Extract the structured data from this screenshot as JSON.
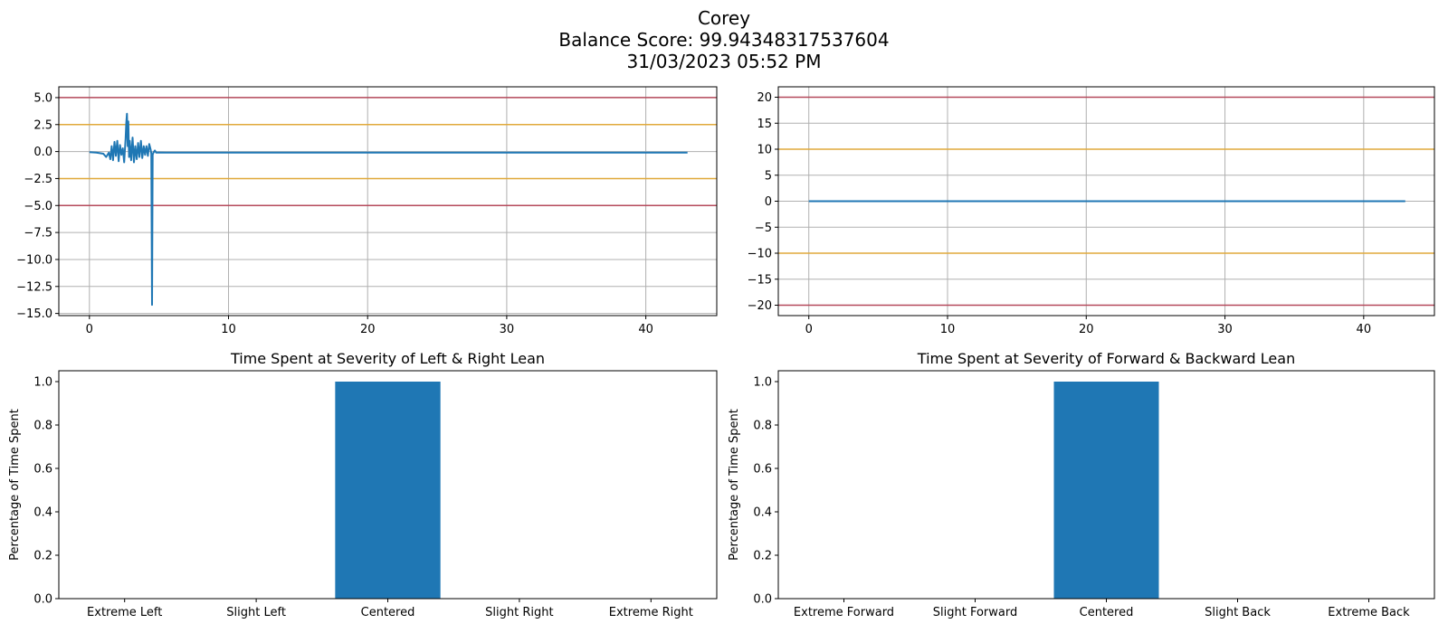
{
  "figure": {
    "name": "Corey",
    "score_text": "Balance Score: 99.94348317537604",
    "datetime": "31/03/2023 05:52 PM"
  },
  "colors": {
    "line": "#1f77b4",
    "bar": "#1f77b4",
    "extreme_threshold": "#b5495b",
    "slight_threshold": "#e0a93a",
    "grid": "#b0b0b0"
  },
  "chart_data": [
    {
      "id": "left-right-timeseries",
      "type": "line",
      "title": "",
      "xlabel": "",
      "ylabel": "",
      "xlim": [
        -2.2,
        45.1
      ],
      "ylim": [
        -15.2,
        6.0
      ],
      "xticks": [
        0,
        10,
        20,
        30,
        40
      ],
      "yticks": [
        5.0,
        2.5,
        0.0,
        -2.5,
        -5.0,
        -7.5,
        -10.0,
        -12.5,
        -15.0
      ],
      "ytick_labels": [
        "5.0",
        "2.5",
        "0.0",
        "−2.5",
        "−5.0",
        "−7.5",
        "−10.0",
        "−12.5",
        "−15.0"
      ],
      "hlines": [
        {
          "y": 5,
          "kind": "extreme"
        },
        {
          "y": 2.5,
          "kind": "slight"
        },
        {
          "y": -2.5,
          "kind": "slight"
        },
        {
          "y": -5,
          "kind": "extreme"
        }
      ],
      "grid": true,
      "series": [
        {
          "x": [
            0,
            0.5,
            1.0,
            1.2,
            1.4,
            1.5,
            1.6,
            1.7,
            1.8,
            1.9,
            2.0,
            2.1,
            2.2,
            2.3,
            2.4,
            2.5,
            2.6,
            2.65,
            2.7,
            2.75,
            2.8,
            2.85,
            2.9,
            3.0,
            3.1,
            3.2,
            3.3,
            3.4,
            3.5,
            3.6,
            3.7,
            3.8,
            3.9,
            4.0,
            4.1,
            4.2,
            4.3,
            4.4,
            4.45,
            4.5,
            4.55,
            4.6,
            4.7,
            4.8,
            5.0,
            5.5,
            6,
            8,
            10,
            15,
            20,
            25,
            30,
            35,
            40,
            43
          ],
          "y": [
            -0.05,
            -0.1,
            -0.2,
            -0.5,
            -0.1,
            -0.7,
            0.5,
            -0.8,
            0.9,
            -0.4,
            1.0,
            -0.9,
            0.6,
            -0.3,
            0.3,
            -1.0,
            1.2,
            2.6,
            3.5,
            0.5,
            2.8,
            -0.5,
            1.0,
            -0.8,
            1.3,
            -1.0,
            0.5,
            -0.7,
            0.8,
            -0.5,
            1.0,
            -0.6,
            0.5,
            -0.3,
            0.5,
            -0.4,
            0.7,
            0.2,
            -0.2,
            -14.2,
            -0.3,
            -0.1,
            0.1,
            -0.1,
            -0.08,
            -0.1,
            -0.1,
            -0.1,
            -0.1,
            -0.1,
            -0.1,
            -0.1,
            -0.1,
            -0.1,
            -0.1,
            -0.1
          ]
        }
      ]
    },
    {
      "id": "forward-backward-timeseries",
      "type": "line",
      "title": "",
      "xlabel": "",
      "ylabel": "",
      "xlim": [
        -2.2,
        45.1
      ],
      "ylim": [
        -22,
        22
      ],
      "xticks": [
        0,
        10,
        20,
        30,
        40
      ],
      "yticks": [
        20,
        15,
        10,
        5,
        0,
        -5,
        -10,
        -15,
        -20
      ],
      "ytick_labels": [
        "20",
        "15",
        "10",
        "5",
        "0",
        "−5",
        "−10",
        "−15",
        "−20"
      ],
      "hlines": [
        {
          "y": 20,
          "kind": "extreme"
        },
        {
          "y": 10,
          "kind": "slight"
        },
        {
          "y": -10,
          "kind": "slight"
        },
        {
          "y": -20,
          "kind": "extreme"
        }
      ],
      "grid": true,
      "series": [
        {
          "x": [
            0,
            43
          ],
          "y": [
            0,
            0
          ]
        }
      ]
    },
    {
      "id": "left-right-bars",
      "type": "bar",
      "title": "Time Spent at Severity of Left & Right Lean",
      "xlabel": "",
      "ylabel": "Percentage of Time Spent",
      "categories": [
        "Extreme Left",
        "Slight Left",
        "Centered",
        "Slight Right",
        "Extreme Right"
      ],
      "values": [
        0,
        0,
        1.0,
        0,
        0
      ],
      "ylim": [
        0,
        1.05
      ],
      "yticks": [
        0.0,
        0.2,
        0.4,
        0.6,
        0.8,
        1.0
      ],
      "ytick_labels": [
        "0.0",
        "0.2",
        "0.4",
        "0.6",
        "0.8",
        "1.0"
      ],
      "grid": false
    },
    {
      "id": "forward-backward-bars",
      "type": "bar",
      "title": "Time Spent at Severity of Forward & Backward Lean",
      "xlabel": "",
      "ylabel": "Percentage of Time Spent",
      "categories": [
        "Extreme Forward",
        "Slight Forward",
        "Centered",
        "Slight Back",
        "Extreme Back"
      ],
      "values": [
        0,
        0,
        1.0,
        0,
        0
      ],
      "ylim": [
        0,
        1.05
      ],
      "yticks": [
        0.0,
        0.2,
        0.4,
        0.6,
        0.8,
        1.0
      ],
      "ytick_labels": [
        "0.0",
        "0.2",
        "0.4",
        "0.6",
        "0.8",
        "1.0"
      ],
      "grid": false
    }
  ]
}
